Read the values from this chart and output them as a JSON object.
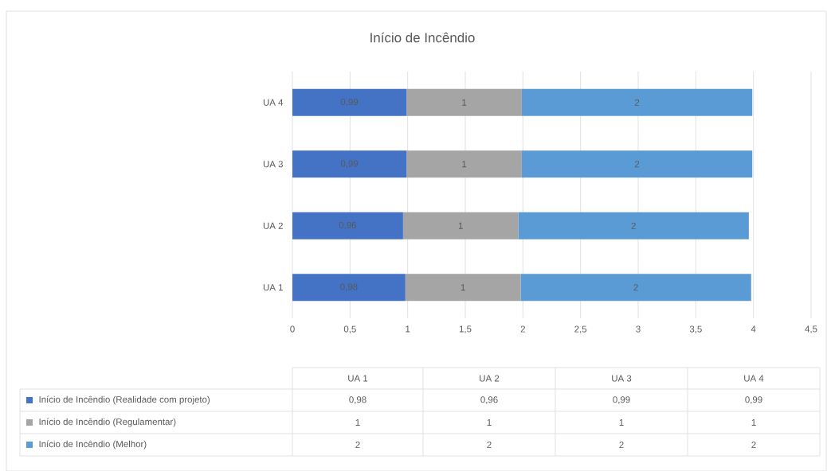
{
  "chart_data": {
    "type": "bar",
    "orientation": "horizontal",
    "stacked": true,
    "title": "Início de Incêndio",
    "categories": [
      "UA 4",
      "UA 3",
      "UA 2",
      "UA 1"
    ],
    "series": [
      {
        "name": "Início de Incêndio (Realidade com projeto)",
        "color": "#4472c4",
        "values": [
          0.99,
          0.99,
          0.96,
          0.98
        ],
        "value_labels": [
          "0,99",
          "0,99",
          "0,96",
          "0,98"
        ]
      },
      {
        "name": "Início de Incêndio (Regulamentar)",
        "color": "#a5a5a5",
        "values": [
          1,
          1,
          1,
          1
        ],
        "value_labels": [
          "1",
          "1",
          "1",
          "1"
        ]
      },
      {
        "name": "Início de Incêndio (Melhor)",
        "color": "#5b9bd5",
        "values": [
          2,
          2,
          2,
          2
        ],
        "value_labels": [
          "2",
          "2",
          "2",
          "2"
        ]
      }
    ],
    "xlim": [
      0,
      4.5
    ],
    "xticks": [
      0,
      {
        "value": 0.5,
        "label": "0,5"
      },
      1,
      {
        "value": 1.5,
        "label": "1,5"
      },
      2,
      {
        "value": 2.5,
        "label": "2,5"
      },
      3,
      {
        "value": 3.5,
        "label": "3,5"
      },
      4,
      {
        "value": 4.5,
        "label": "4,5"
      }
    ],
    "grid": "x",
    "legend": "bottom"
  }
}
